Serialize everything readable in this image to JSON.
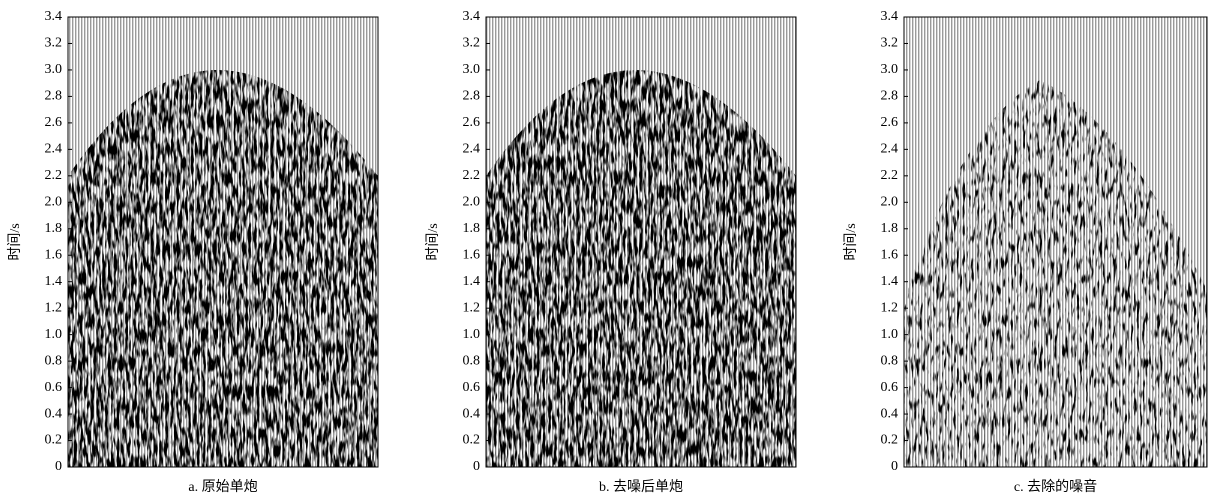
{
  "chart_data": [
    {
      "type": "seismic",
      "title": "a. 原始单炮",
      "ylabel": "时间/s",
      "ylim": [
        0,
        3.4
      ],
      "yticks": [
        0,
        0.2,
        0.4,
        0.6,
        0.8,
        {
          "value": 1,
          "label": "1.0"
        },
        1.2,
        1.4,
        1.6,
        1.8,
        {
          "value": 2,
          "label": "2.0"
        },
        2.2,
        2.4,
        2.6,
        2.8,
        {
          "value": 3,
          "label": "3.0"
        },
        3.2,
        3.4
      ]
    },
    {
      "type": "seismic",
      "title": "b. 去噪后单炮",
      "ylabel": "时间/s",
      "ylim": [
        0,
        3.4
      ],
      "yticks": [
        0,
        0.2,
        0.4,
        0.6,
        0.8,
        {
          "value": 1,
          "label": "1.0"
        },
        1.2,
        1.4,
        1.6,
        1.8,
        {
          "value": 2,
          "label": "2.0"
        },
        2.2,
        2.4,
        2.6,
        2.8,
        {
          "value": 3,
          "label": "3.0"
        },
        3.2,
        3.4
      ]
    },
    {
      "type": "seismic",
      "title": "c. 去除的噪音",
      "ylabel": "时间/s",
      "ylim": [
        0,
        3.4
      ],
      "yticks": [
        0,
        0.2,
        0.4,
        0.6,
        0.8,
        {
          "value": 1,
          "label": "1.0"
        },
        1.2,
        1.4,
        1.6,
        1.8,
        {
          "value": 2,
          "label": "2.0"
        },
        2.2,
        2.4,
        2.6,
        2.8,
        {
          "value": 3,
          "label": "3.0"
        },
        3.2,
        3.4
      ]
    }
  ]
}
